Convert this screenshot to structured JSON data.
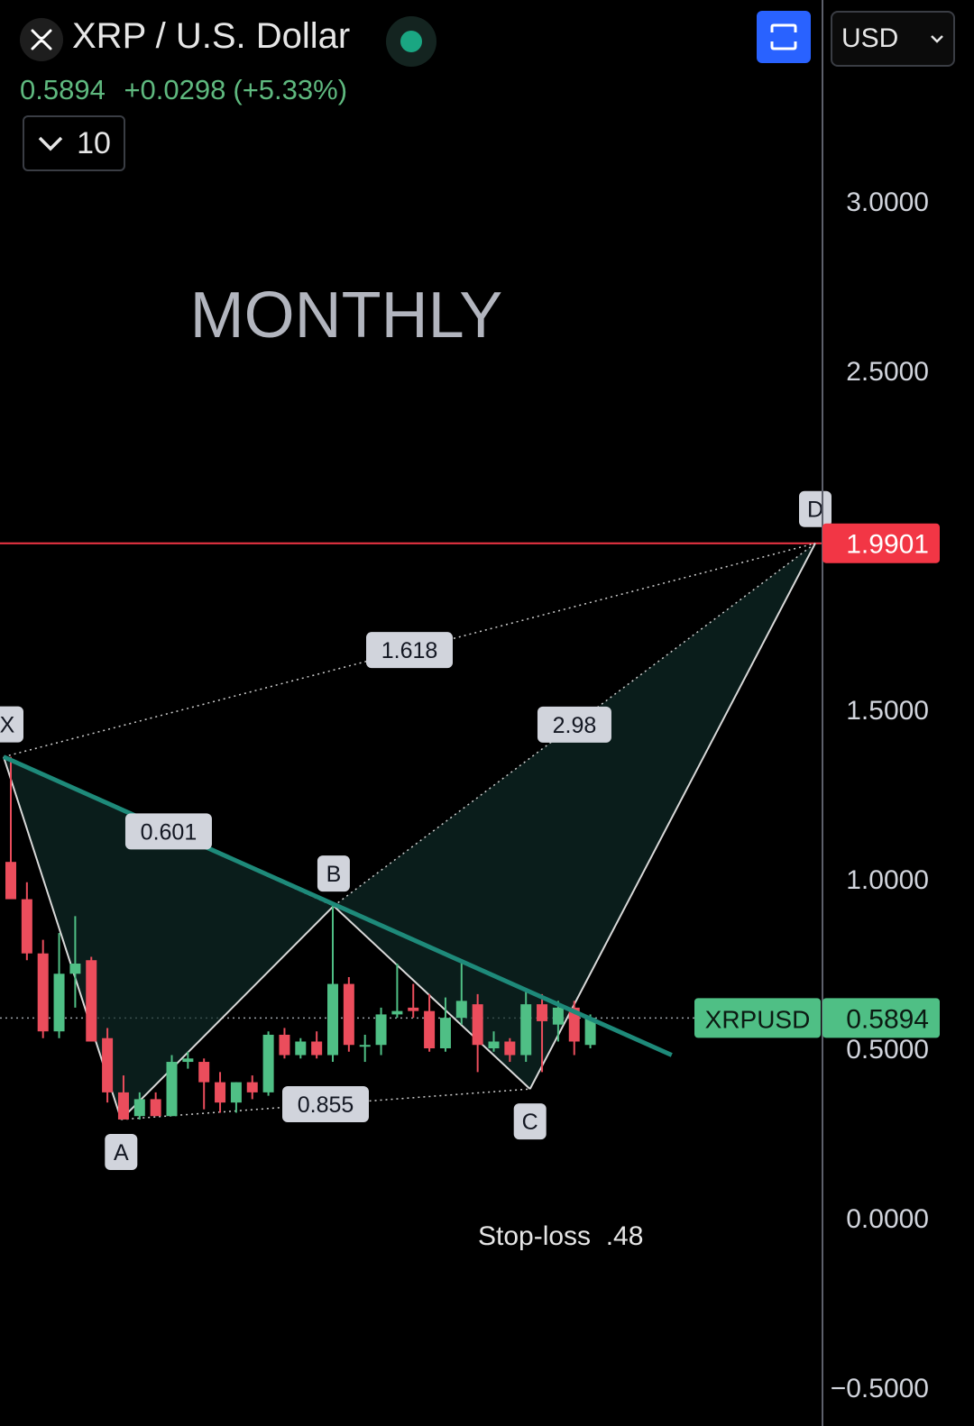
{
  "header": {
    "title": "XRP / U.S. Dollar",
    "price": "0.5894",
    "change": "+0.0298",
    "change_pct": "(+5.33%)",
    "indicator_count": "10",
    "currency": "USD",
    "logo_icon": "xrp-logo-icon",
    "status_icon": "market-open-dot-icon",
    "layout_icon": "fullscreen-icon"
  },
  "colors": {
    "background": "#000000",
    "up": "#4fbf85",
    "down": "#eb4d5c",
    "accent": "#2962ff",
    "trendline": "#1e8a7a",
    "target_line": "#f23645"
  },
  "chart_data": {
    "type": "candlestick",
    "timeframe_label": "MONTHLY",
    "symbol_label": "XRPUSD",
    "y_axis": {
      "range": [
        -0.5,
        3.5
      ],
      "ticks": [
        "3.0000",
        "2.5000",
        "1.5000",
        "1.0000",
        "0.5000",
        "0.0000",
        "−0.5000"
      ]
    },
    "last_price": 0.5894,
    "last_price_label": "0.5894",
    "target_price": 1.9901,
    "target_price_label": "1.9901",
    "candles": [
      {
        "o": 1.05,
        "h": 1.36,
        "l": 0.94,
        "c": 0.94
      },
      {
        "o": 0.94,
        "h": 0.99,
        "l": 0.76,
        "c": 0.78
      },
      {
        "o": 0.78,
        "h": 0.82,
        "l": 0.53,
        "c": 0.55
      },
      {
        "o": 0.55,
        "h": 0.84,
        "l": 0.53,
        "c": 0.72
      },
      {
        "o": 0.72,
        "h": 0.89,
        "l": 0.62,
        "c": 0.75
      },
      {
        "o": 0.76,
        "h": 0.77,
        "l": 0.54,
        "c": 0.52
      },
      {
        "o": 0.53,
        "h": 0.56,
        "l": 0.34,
        "c": 0.37
      },
      {
        "o": 0.37,
        "h": 0.42,
        "l": 0.29,
        "c": 0.29
      },
      {
        "o": 0.3,
        "h": 0.37,
        "l": 0.29,
        "c": 0.35
      },
      {
        "o": 0.35,
        "h": 0.37,
        "l": 0.3,
        "c": 0.3
      },
      {
        "o": 0.3,
        "h": 0.48,
        "l": 0.3,
        "c": 0.46
      },
      {
        "o": 0.46,
        "h": 0.49,
        "l": 0.44,
        "c": 0.47
      },
      {
        "o": 0.46,
        "h": 0.47,
        "l": 0.32,
        "c": 0.4
      },
      {
        "o": 0.4,
        "h": 0.43,
        "l": 0.31,
        "c": 0.34
      },
      {
        "o": 0.34,
        "h": 0.4,
        "l": 0.31,
        "c": 0.4
      },
      {
        "o": 0.4,
        "h": 0.42,
        "l": 0.35,
        "c": 0.37
      },
      {
        "o": 0.37,
        "h": 0.55,
        "l": 0.36,
        "c": 0.54
      },
      {
        "o": 0.54,
        "h": 0.56,
        "l": 0.47,
        "c": 0.48
      },
      {
        "o": 0.48,
        "h": 0.53,
        "l": 0.47,
        "c": 0.52
      },
      {
        "o": 0.52,
        "h": 0.55,
        "l": 0.47,
        "c": 0.48
      },
      {
        "o": 0.48,
        "h": 0.92,
        "l": 0.46,
        "c": 0.69
      },
      {
        "o": 0.69,
        "h": 0.71,
        "l": 0.49,
        "c": 0.51
      },
      {
        "o": 0.51,
        "h": 0.54,
        "l": 0.46,
        "c": 0.51
      },
      {
        "o": 0.51,
        "h": 0.62,
        "l": 0.48,
        "c": 0.6
      },
      {
        "o": 0.6,
        "h": 0.75,
        "l": 0.59,
        "c": 0.61
      },
      {
        "o": 0.62,
        "h": 0.69,
        "l": 0.59,
        "c": 0.61
      },
      {
        "o": 0.61,
        "h": 0.66,
        "l": 0.49,
        "c": 0.5
      },
      {
        "o": 0.5,
        "h": 0.65,
        "l": 0.49,
        "c": 0.59
      },
      {
        "o": 0.59,
        "h": 0.76,
        "l": 0.57,
        "c": 0.64
      },
      {
        "o": 0.63,
        "h": 0.66,
        "l": 0.43,
        "c": 0.51
      },
      {
        "o": 0.5,
        "h": 0.55,
        "l": 0.49,
        "c": 0.52
      },
      {
        "o": 0.52,
        "h": 0.53,
        "l": 0.46,
        "c": 0.48
      },
      {
        "o": 0.48,
        "h": 0.67,
        "l": 0.46,
        "c": 0.63
      },
      {
        "o": 0.63,
        "h": 0.66,
        "l": 0.43,
        "c": 0.58
      },
      {
        "o": 0.57,
        "h": 0.64,
        "l": 0.52,
        "c": 0.62
      },
      {
        "o": 0.62,
        "h": 0.64,
        "l": 0.48,
        "c": 0.52
      },
      {
        "o": 0.51,
        "h": 0.6,
        "l": 0.5,
        "c": 0.59
      }
    ],
    "harmonic_points": [
      {
        "label": "X",
        "index": 0,
        "price": 1.36
      },
      {
        "label": "A",
        "index": 7.3,
        "price": 0.29
      },
      {
        "label": "B",
        "index": 20.5,
        "price": 0.92
      },
      {
        "label": "C",
        "index": 32.7,
        "price": 0.38
      },
      {
        "label": "D",
        "index": 51,
        "price": 1.9901
      }
    ],
    "ratios": [
      {
        "label": "0.601",
        "from": "X",
        "to": "B"
      },
      {
        "label": "0.855",
        "from": "A",
        "to": "C"
      },
      {
        "label": "2.98",
        "from": "B",
        "to": "D"
      },
      {
        "label": "1.618",
        "from": "X",
        "to": "D"
      }
    ],
    "trendline": {
      "from": {
        "index": 0,
        "price": 1.36
      },
      "to": {
        "index": 41.5,
        "price": 0.48
      }
    },
    "annotations": [
      {
        "text": "Stop-loss  .48"
      }
    ]
  }
}
